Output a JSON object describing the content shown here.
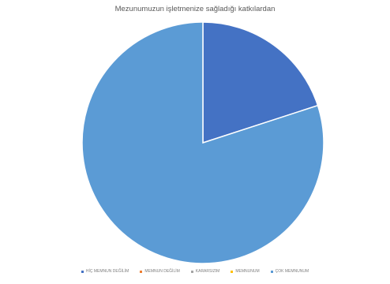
{
  "chart_data": {
    "type": "pie",
    "title": "Mezunumuzun işletmenize sağladığı katkılardan",
    "categories": [
      "HİÇ MEMNUN DEĞİLİM",
      "MEMNUN DEĞİLİM",
      "KARARSIZIM",
      "MEMNUNUM",
      "ÇOK MEMNUNUM"
    ],
    "values": [
      20,
      0,
      0,
      0,
      80
    ],
    "colors": [
      "#4472c4",
      "#ed7d31",
      "#a5a5a5",
      "#ffc000",
      "#5b9bd5"
    ],
    "legend_position": "bottom"
  }
}
